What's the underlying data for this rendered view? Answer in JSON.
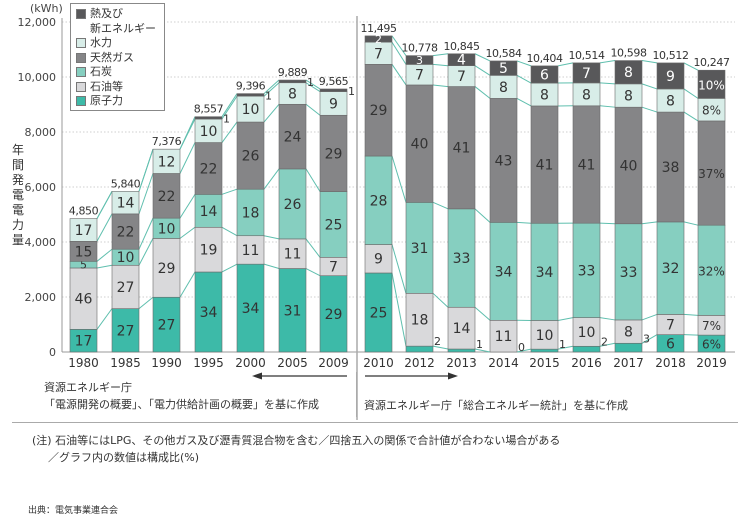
{
  "chart_data": {
    "type": "bar",
    "stacked": true,
    "unit_label": "(kWh)",
    "ylabel": "年間発電電力量",
    "ylim": [
      0,
      12000
    ],
    "yticks": [
      "0",
      "2,000",
      "4,000",
      "6,000",
      "8,000",
      "10,000",
      "12,000"
    ],
    "ytick_values": [
      0,
      2000,
      4000,
      6000,
      8000,
      10000,
      12000
    ],
    "grid": true,
    "legend_placement": "top-left",
    "legend": [
      {
        "key": "renewable",
        "label": "熱及び\n新エネルギー",
        "color": "#58585a"
      },
      {
        "key": "hydro",
        "label": "水力",
        "color": "#d8ede8"
      },
      {
        "key": "gas",
        "label": "天然ガス",
        "color": "#858587"
      },
      {
        "key": "coal",
        "label": "石炭",
        "color": "#86cfc0"
      },
      {
        "key": "oil",
        "label": "石油等",
        "color": "#d9d9db"
      },
      {
        "key": "nuclear",
        "label": "原子力",
        "color": "#3dbaa8"
      }
    ],
    "stack_order_bottom_to_top": [
      "nuclear",
      "oil",
      "coal",
      "gas",
      "hydro",
      "renewable"
    ],
    "groups": [
      {
        "categories": [
          "1980",
          "1985",
          "1990",
          "1995",
          "2000",
          "2005",
          "2009"
        ],
        "totals": [
          4850,
          5840,
          7376,
          8557,
          9396,
          9889,
          9565
        ],
        "total_labels": [
          "4,850",
          "5,840",
          "7,376",
          "8,557",
          "9,396",
          "9,889",
          "9,565"
        ],
        "series": [
          {
            "name": "原子力",
            "key": "nuclear",
            "values": [
              17,
              27,
              27,
              34,
              34,
              31,
              29
            ],
            "labels": [
              "17",
              "27",
              "27",
              "34",
              "34",
              "31",
              "29"
            ]
          },
          {
            "name": "石油等",
            "key": "oil",
            "values": [
              46,
              27,
              29,
              19,
              11,
              11,
              7
            ],
            "labels": [
              "46",
              "27",
              "29",
              "19",
              "11",
              "11",
              "7"
            ]
          },
          {
            "name": "石炭",
            "key": "coal",
            "values": [
              5,
              10,
              10,
              14,
              18,
              26,
              25
            ],
            "labels": [
              "5",
              "10",
              "10",
              "14",
              "18",
              "26",
              "25"
            ]
          },
          {
            "name": "天然ガス",
            "key": "gas",
            "values": [
              15,
              22,
              22,
              22,
              26,
              24,
              29
            ],
            "labels": [
              "15",
              "22",
              "22",
              "22",
              "26",
              "24",
              "29"
            ]
          },
          {
            "name": "水力",
            "key": "hydro",
            "values": [
              17,
              14,
              12,
              10,
              10,
              8,
              9
            ],
            "labels": [
              "17",
              "14",
              "12",
              "10",
              "10",
              "8",
              "9"
            ]
          },
          {
            "name": "熱及び新エネルギー",
            "key": "renewable",
            "values": [
              0,
              0,
              0,
              1,
              1,
              1,
              1
            ],
            "labels": [
              "",
              "",
              "",
              "1",
              "1",
              "1",
              "1"
            ]
          }
        ]
      },
      {
        "categories": [
          "2010",
          "2012",
          "2013",
          "2014",
          "2015",
          "2016",
          "2017",
          "2018",
          "2019"
        ],
        "totals": [
          11495,
          10778,
          10845,
          10584,
          10404,
          10514,
          10598,
          10512,
          10247
        ],
        "total_labels": [
          "11,495",
          "10,778",
          "10,845",
          "10,584",
          "10,404",
          "10,514",
          "10,598",
          "10,512",
          "10,247"
        ],
        "series": [
          {
            "name": "原子力",
            "key": "nuclear",
            "values": [
              25,
              2,
              1,
              0,
              1,
              2,
              3,
              6,
              6
            ],
            "labels": [
              "25",
              "2",
              "1",
              "0",
              "1",
              "2",
              "3",
              "6",
              "6%"
            ]
          },
          {
            "name": "石油等",
            "key": "oil",
            "values": [
              9,
              18,
              14,
              11,
              10,
              10,
              8,
              7,
              7
            ],
            "labels": [
              "9",
              "18",
              "14",
              "11",
              "10",
              "10",
              "8",
              "7",
              "7%"
            ]
          },
          {
            "name": "石炭",
            "key": "coal",
            "values": [
              28,
              31,
              33,
              34,
              34,
              33,
              33,
              32,
              32
            ],
            "labels": [
              "28",
              "31",
              "33",
              "34",
              "34",
              "33",
              "33",
              "32",
              "32%"
            ]
          },
          {
            "name": "天然ガス",
            "key": "gas",
            "values": [
              29,
              40,
              41,
              43,
              41,
              41,
              40,
              38,
              37
            ],
            "labels": [
              "29",
              "40",
              "41",
              "43",
              "41",
              "41",
              "40",
              "38",
              "37%"
            ]
          },
          {
            "name": "水力",
            "key": "hydro",
            "values": [
              7,
              7,
              7,
              8,
              8,
              8,
              8,
              8,
              8
            ],
            "labels": [
              "7",
              "7",
              "7",
              "8",
              "8",
              "8",
              "8",
              "8",
              "8%"
            ]
          },
          {
            "name": "熱及び新エネルギー",
            "key": "renewable",
            "values": [
              2,
              3,
              4,
              5,
              6,
              7,
              8,
              9,
              10
            ],
            "labels": [
              "2",
              "3",
              "4",
              "5",
              "6",
              "7",
              "8",
              "9",
              "10%"
            ]
          }
        ]
      }
    ]
  },
  "sources": {
    "left_line1": "資源エネルギー庁",
    "left_line2": "「電源開発の概要」、「電力供給計画の概要」を基に作成",
    "right": "資源エネルギー庁「総合エネルギー統計」を基に作成"
  },
  "note": {
    "line1": "(注) 石油等にはLPG、その他ガス及び瀝青質混合物を含む／四捨五入の関係で合計値が合わない場合がある",
    "line2": "／グラフ内の数値は構成比(%)"
  },
  "citation": "出典：電気事業連合会"
}
